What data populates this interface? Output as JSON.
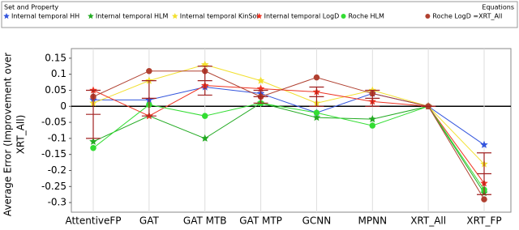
{
  "chart_data": {
    "type": "line",
    "legend_title": "Set and Property",
    "legend_subtitle": "Equations",
    "ylabel": [
      "Average Error (Improvement over",
      "XRT_All)"
    ],
    "categories": [
      "AttentiveFP",
      "GAT",
      "GAT MTB",
      "GAT MTP",
      "GCNN",
      "MPNN",
      "XRT_All",
      "XRT_FP"
    ],
    "ylim": [
      -0.33,
      0.18
    ],
    "yticks": [
      0.15,
      0.1,
      0.05,
      0,
      -0.05,
      -0.1,
      -0.15,
      -0.2,
      -0.25,
      -0.3
    ],
    "grid": true,
    "legend": "top",
    "series": [
      {
        "name": "Internal temporal HH",
        "color": "#3355dd",
        "marker": "star",
        "values": [
          0.02,
          0.02,
          0.06,
          0.04,
          -0.02,
          0.04,
          0,
          -0.12
        ]
      },
      {
        "name": "Internal temporal HLM",
        "color": "#22aa22",
        "marker": "star",
        "values": [
          -0.11,
          -0.03,
          -0.1,
          0.01,
          -0.035,
          -0.04,
          0,
          -0.27
        ]
      },
      {
        "name": "Internal temporal KinSol",
        "color": "#f2e030",
        "marker": "star",
        "values": [
          0.01,
          0.08,
          0.13,
          0.08,
          0.01,
          0.05,
          0,
          -0.18
        ]
      },
      {
        "name": "Internal temporal LogD",
        "color": "#ee3322",
        "marker": "star",
        "values": [
          0.05,
          -0.03,
          0.065,
          0.055,
          0.045,
          0.015,
          0,
          -0.24
        ]
      },
      {
        "name": "Roche HLM",
        "color": "#33dd33",
        "marker": "circle",
        "values": [
          -0.13,
          0.005,
          -0.03,
          0.01,
          -0.02,
          -0.06,
          0,
          -0.26
        ]
      },
      {
        "name": "Roche LogD =XRT_All",
        "color": "#b04030",
        "marker": "circle",
        "values": [
          0.03,
          0.11,
          0.11,
          0.03,
          0.09,
          0.04,
          0,
          -0.29
        ]
      }
    ],
    "error_bars": {
      "color": "#a02020",
      "values": [
        -0.025,
        0.025,
        0.08,
        0.03,
        0.03,
        0.025,
        0,
        -0.21
      ],
      "errors": [
        0.075,
        0.055,
        0.045,
        0.02,
        0.03,
        0.025,
        0,
        0.065
      ]
    }
  }
}
